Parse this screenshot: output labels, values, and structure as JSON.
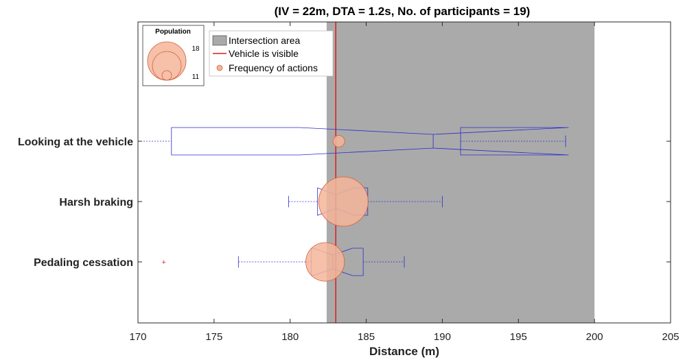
{
  "chart_data": {
    "type": "boxplot",
    "title": "(IV = 22m, DTA = 1.2s, No. of participants = 19)",
    "xlabel": "Distance (m)",
    "xlim": [
      170,
      205
    ],
    "xticks": [
      170,
      175,
      180,
      185,
      190,
      195,
      200,
      205
    ],
    "categories": [
      "Looking at the vehicle",
      "Harsh braking",
      "Pedaling cessation"
    ],
    "boxes": [
      {
        "category": "Looking at the vehicle",
        "whisker_low": 170.0,
        "q1": 172.2,
        "median": 189.4,
        "q3": 191.2,
        "whisker_high": 198.1,
        "notch_low": 180.6,
        "notch_high": 198.3,
        "outliers": []
      },
      {
        "category": "Harsh braking",
        "whisker_low": 179.9,
        "q1": 181.8,
        "median": 183.0,
        "q3": 185.1,
        "whisker_high": 190.0,
        "notch_low": 181.8,
        "notch_high": 184.2,
        "outliers": []
      },
      {
        "category": "Pedaling cessation",
        "whisker_low": 176.6,
        "q1": 181.4,
        "median": 182.8,
        "q3": 184.8,
        "whisker_high": 187.5,
        "notch_low": 181.5,
        "notch_high": 184.1,
        "outliers": [
          171.7
        ]
      }
    ],
    "action_frequency": [
      {
        "category": "Looking at the vehicle",
        "x": 183.2,
        "count": 1
      },
      {
        "category": "Harsh braking",
        "x": 183.5,
        "count": 18
      },
      {
        "category": "Pedaling cessation",
        "x": 182.3,
        "count": 11
      }
    ],
    "intersection_area": [
      182.4,
      200.0
    ],
    "vehicle_visible_x": 183.0,
    "legend": {
      "items": [
        "Intersection area",
        "Vehicle is visible",
        "Frequency of actions"
      ],
      "placement": "top-left"
    },
    "population_legend": {
      "title": "Population",
      "max_label": "18",
      "min_label": "11"
    },
    "colors": {
      "box": "#2a2ad0",
      "bubble_fill": "#f4b59a",
      "bubble_stroke": "#d2603c",
      "vehicle_line": "#e01818",
      "area_fill": "#aaaaaa",
      "outlier": "#e03030"
    }
  }
}
